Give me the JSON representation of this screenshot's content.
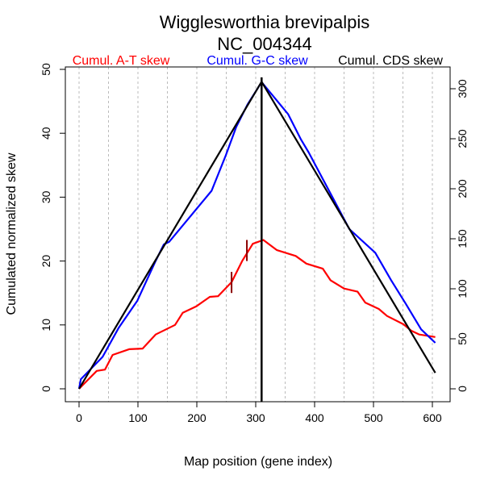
{
  "chart_data": {
    "type": "line",
    "title": "Wigglesworthia brevipalpis",
    "subtitle": "NC_004344",
    "xlabel": "Map position (gene index)",
    "ylabel": "Cumulated normalized skew",
    "xlim": [
      0,
      600
    ],
    "ylim": [
      0,
      50
    ],
    "y2lim": [
      0,
      300
    ],
    "xticks": [
      "0",
      "100",
      "200",
      "300",
      "400",
      "500",
      "600"
    ],
    "yticks": [
      "0",
      "10",
      "20",
      "30",
      "40",
      "50"
    ],
    "y2ticks": [
      "0",
      "50",
      "100",
      "150",
      "200",
      "250",
      "300"
    ],
    "grid": "vertical dotted every 50",
    "legend": [
      "Cumul. A-T skew",
      "Cumul. G-C skew",
      "Cumul. CDS skew"
    ],
    "colors": {
      "at": "#ff0000",
      "gc": "#0000ff",
      "cds": "#000000",
      "marker": "#8b0000"
    },
    "series": [
      {
        "name": "Cumul. A-T skew",
        "axis": "left",
        "x": [
          0,
          30,
          44,
          57,
          85,
          108,
          130,
          163,
          176,
          199,
          222,
          236,
          259,
          277,
          295,
          313,
          336,
          368,
          386,
          414,
          427,
          450,
          473,
          486,
          509,
          523,
          551,
          564,
          578,
          605
        ],
        "y": [
          0,
          2.8,
          3,
          5.3,
          6.2,
          6.3,
          8.5,
          10,
          11.9,
          12.9,
          14.4,
          14.5,
          16.7,
          20,
          22.7,
          23.3,
          21.7,
          20.8,
          19.6,
          18.8,
          17,
          15.7,
          15.2,
          13.5,
          12.5,
          11.4,
          10.1,
          9.1,
          8.5,
          8.1
        ]
      },
      {
        "name": "Cumul. G-C skew",
        "axis": "left",
        "x": [
          0,
          3,
          40,
          67,
          99,
          130,
          144,
          153,
          225,
          249,
          267,
          286,
          310,
          355,
          377,
          390,
          432,
          459,
          503,
          530,
          555,
          581,
          605
        ],
        "y": [
          0,
          1.5,
          5,
          9.5,
          13.8,
          20,
          22.6,
          23,
          31,
          36.5,
          41,
          44.5,
          48,
          43,
          39,
          37,
          29.7,
          25,
          21.3,
          17,
          13.3,
          9.3,
          7.2
        ]
      },
      {
        "name": "Cumul. CDS skew",
        "axis": "right",
        "x": [
          0,
          310,
          605
        ],
        "y": [
          0,
          307,
          16
        ]
      }
    ],
    "origin_line_x": 310,
    "terminus_ticks": [
      {
        "x": 259,
        "y0": 15,
        "y1": 18.3
      },
      {
        "x": 285,
        "y0": 20,
        "y1": 23.3
      }
    ]
  }
}
